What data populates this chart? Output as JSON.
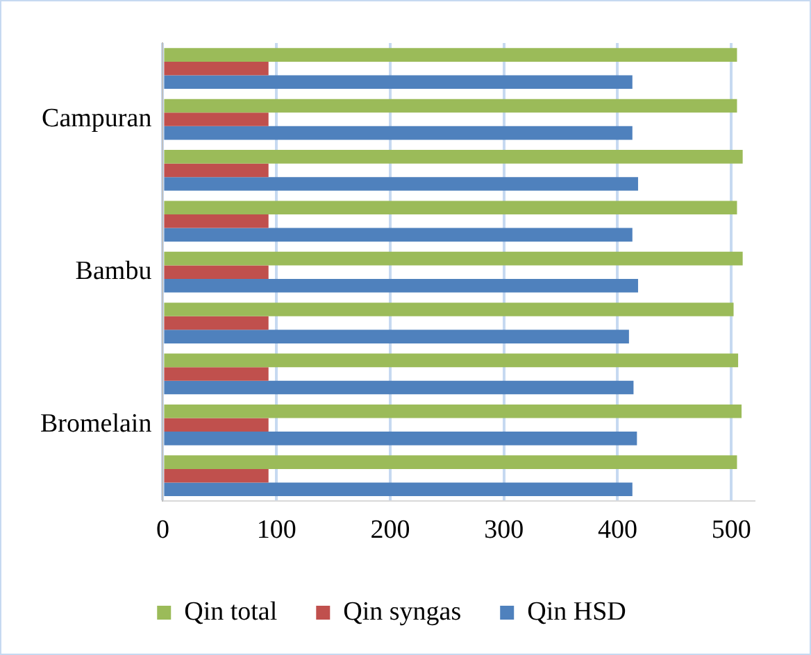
{
  "chart_data": {
    "type": "bar",
    "orientation": "horizontal",
    "categories": [
      null,
      "Campuran",
      null,
      null,
      "Bambu",
      null,
      null,
      "Bromelain",
      null
    ],
    "series": [
      {
        "name": "Qin total",
        "color": "#9bbb59",
        "values": [
          505,
          505,
          510,
          505,
          510,
          502,
          506,
          509,
          505
        ]
      },
      {
        "name": "Qin syngas",
        "color": "#c0504d",
        "values": [
          93,
          93,
          93,
          93,
          93,
          93,
          93,
          93,
          93
        ]
      },
      {
        "name": "Qin HSD",
        "color": "#4f81bd",
        "values": [
          413,
          413,
          418,
          413,
          418,
          410,
          414,
          417,
          413
        ]
      }
    ],
    "xlim": [
      0,
      520
    ],
    "xticks": [
      0,
      100,
      200,
      300,
      400,
      500
    ],
    "grid": "x",
    "legend": "bottom"
  }
}
